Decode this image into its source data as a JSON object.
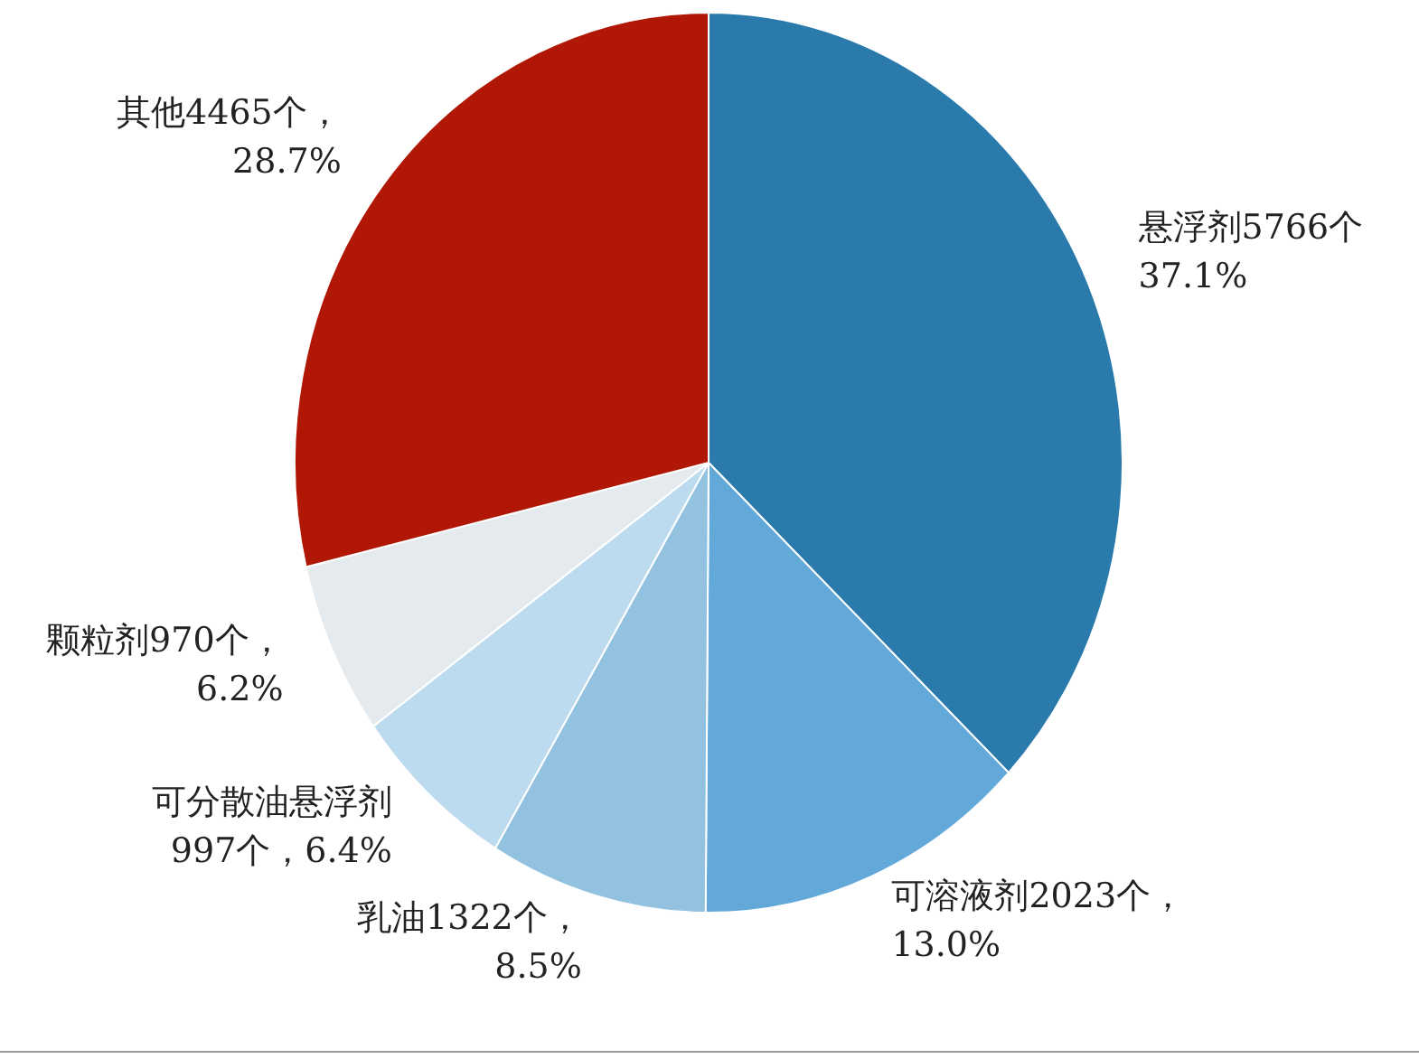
{
  "chart_data": {
    "type": "pie",
    "categories": [
      "悬浮剂",
      "可溶液剂",
      "乳油",
      "可分散油悬浮剂",
      "颗粒剂",
      "其他"
    ],
    "values": [
      5766,
      2023,
      1322,
      997,
      970,
      4465
    ],
    "value_labels": [
      "5766个\n37.1%",
      "2023个，\n13.0%",
      "1322个，\n8.5%",
      "997个，6.4%",
      "970个，\n6.2%",
      "4465个，\n28.7%"
    ],
    "colors": [
      "#2a7aac",
      "#62a9d9",
      "#93c2e0",
      "#bcdbee",
      "#e4eaee",
      "#b01805"
    ]
  }
}
